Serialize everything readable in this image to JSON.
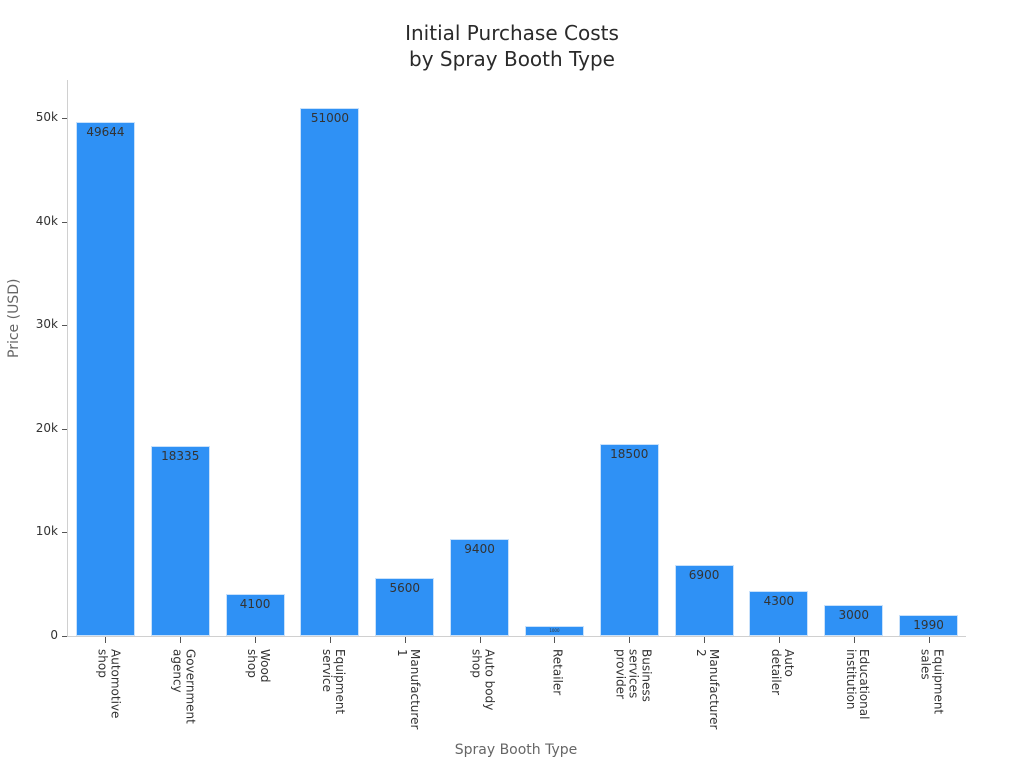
{
  "chart_data": {
    "type": "bar",
    "title": "Initial Purchase Costs\nby Spray Booth Type",
    "title_lines": [
      "Initial Purchase Costs",
      "by Spray Booth Type"
    ],
    "xlabel": "Spray Booth Type",
    "ylabel": "Price (USD)",
    "ylim": [
      0,
      54000
    ],
    "yticks": [
      0,
      10000,
      20000,
      30000,
      40000,
      50000
    ],
    "ytick_labels": [
      "0",
      "10k",
      "20k",
      "30k",
      "40k",
      "50k"
    ],
    "grid": false,
    "legend": null,
    "bar_color": "#2f91f5",
    "categories": [
      "Automotive shop",
      "Government agency",
      "Wood shop",
      "Equipment service",
      "Manufacturer 1",
      "Auto body shop",
      "Retailer",
      "Business services provider",
      "Manufacturer 2",
      "Auto detailer",
      "Educational institution",
      "Equipment sales"
    ],
    "category_labels_wrapped": [
      "Automotive\nshop",
      "Government\nagency",
      "Wood\nshop",
      "Equipment\nservice",
      "Manufacturer\n1",
      "Auto body\nshop",
      "Retailer",
      "Business\nservices\nprovider",
      "Manufacturer\n2",
      "Auto\ndetailer",
      "Educational\ninstitution",
      "Equipment\nsales"
    ],
    "values": [
      49644,
      18335,
      4100,
      51000,
      5600,
      9400,
      1000,
      18500,
      6900,
      4300,
      3000,
      1990
    ],
    "value_labels": [
      "49644",
      "18335",
      "4100",
      "51000",
      "5600",
      "9400",
      "1000",
      "18500",
      "6900",
      "4300",
      "3000",
      "1990"
    ]
  }
}
